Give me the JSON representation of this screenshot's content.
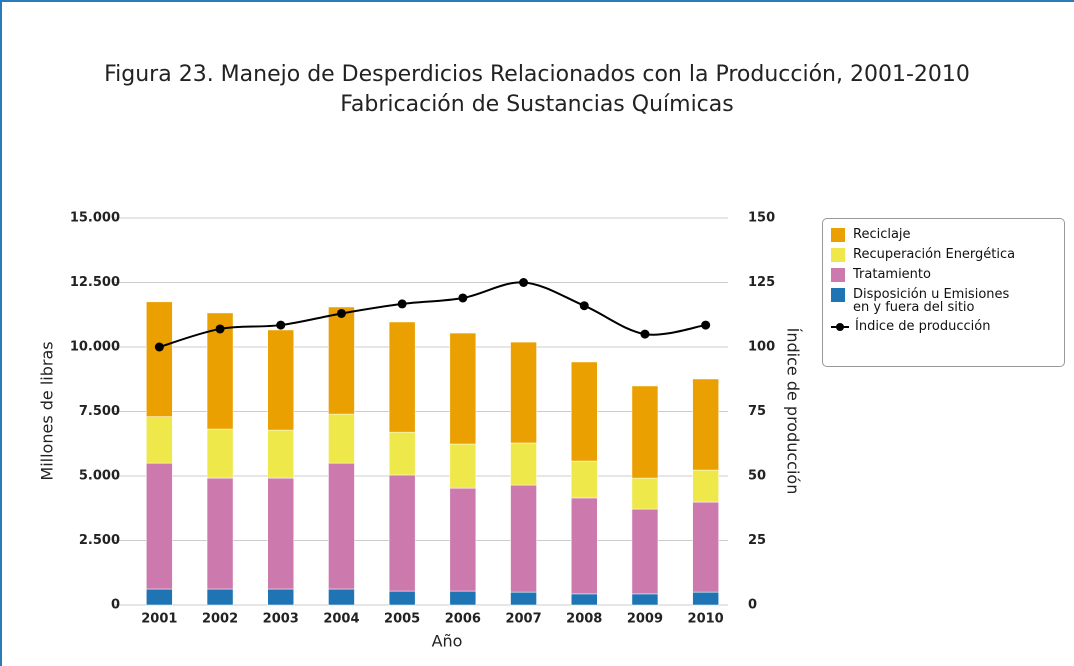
{
  "chart_data": {
    "type": "bar",
    "stacked": true,
    "title": "Figura 23. Manejo de Desperdicios Relacionados con la Producción, 2001-2010",
    "subtitle": "Fabricación de Sustancias Químicas",
    "x_label": "Año",
    "y_label": "Millones de libras",
    "y2_label": "Índice de producción",
    "categories": [
      "2001",
      "2002",
      "2003",
      "2004",
      "2005",
      "2006",
      "2007",
      "2008",
      "2009",
      "2010"
    ],
    "ylim": [
      0,
      15000
    ],
    "yticks": [
      0,
      {
        "value": 2500,
        "label": "2.500"
      },
      {
        "value": 5000,
        "label": "5.000"
      },
      {
        "value": 7500,
        "label": "7.500"
      },
      {
        "value": 10000,
        "label": "10.000"
      },
      {
        "value": 12500,
        "label": "12.500"
      },
      {
        "value": 15000,
        "label": "15.000"
      }
    ],
    "y2lim": [
      0,
      150
    ],
    "y2ticks": [
      0,
      25,
      50,
      75,
      100,
      125,
      150
    ],
    "grid": true,
    "legend": "right",
    "series": [
      {
        "name": "Disposición u Emisiones en y fuera del sitio",
        "color": "#1f74b3",
        "values": [
          620,
          620,
          620,
          620,
          540,
          540,
          500,
          430,
          430,
          500
        ]
      },
      {
        "name": "Tratamiento",
        "color": "#cc7aad",
        "values": [
          4880,
          4300,
          4300,
          4880,
          4500,
          3990,
          4150,
          3720,
          3290,
          3490
        ]
      },
      {
        "name": "Recuperación Energética",
        "color": "#eee84a",
        "values": [
          1800,
          1900,
          1860,
          1900,
          1660,
          1710,
          1630,
          1430,
          1200,
          1240
        ]
      },
      {
        "name": "Reciclaje",
        "color": "#e9a000",
        "values": [
          4450,
          4500,
          3880,
          4150,
          4270,
          4300,
          3910,
          3840,
          3570,
          3530
        ]
      },
      {
        "name": "Índice de producción",
        "type": "line",
        "axis": "y2",
        "color": "#000000",
        "values": [
          100,
          107,
          108.5,
          113,
          116.7,
          119,
          125,
          116,
          105,
          108.5
        ]
      }
    ]
  }
}
